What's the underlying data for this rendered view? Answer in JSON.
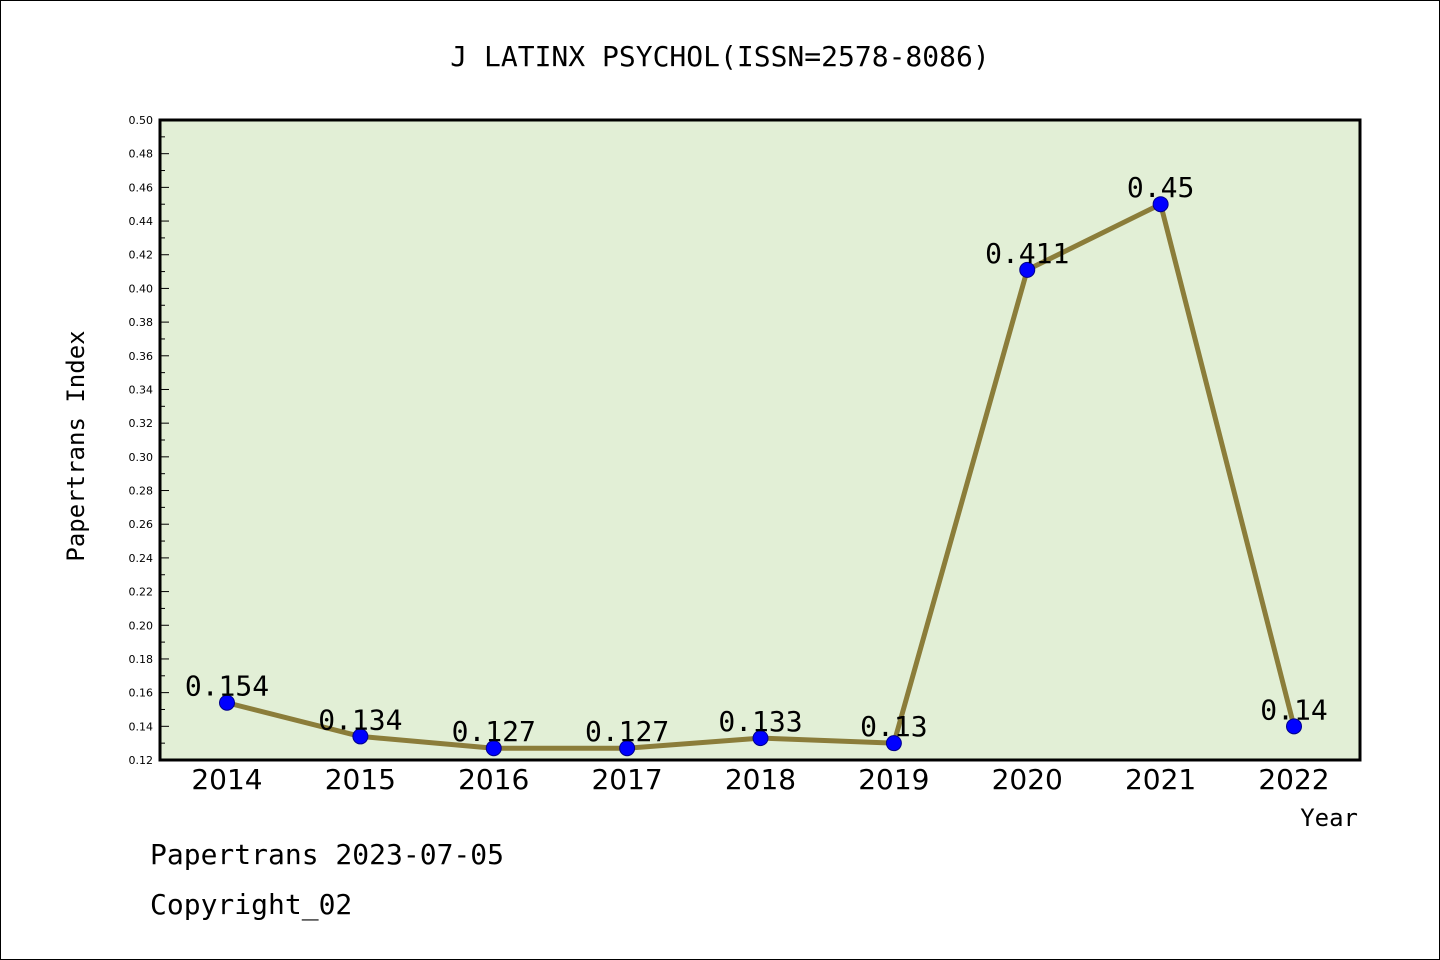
{
  "chart_data": {
    "type": "line",
    "title": "J LATINX PSYCHOL(ISSN=2578-8086)",
    "xlabel": "Year",
    "ylabel": "Papertrans Index",
    "categories": [
      "2014",
      "2015",
      "2016",
      "2017",
      "2018",
      "2019",
      "2020",
      "2021",
      "2022"
    ],
    "values": [
      0.154,
      0.134,
      0.127,
      0.127,
      0.133,
      0.13,
      0.411,
      0.45,
      0.14
    ],
    "value_labels": [
      "0.154",
      "0.134",
      "0.127",
      "0.127",
      "0.133",
      "0.13",
      "0.411",
      "0.45",
      "0.14"
    ],
    "ylim": [
      0.12,
      0.5
    ],
    "yticks": [
      "0.12",
      "0.14",
      "0.16",
      "0.18",
      "0.20",
      "0.22",
      "0.24",
      "0.26",
      "0.28",
      "0.30",
      "0.32",
      "0.34",
      "0.36",
      "0.38",
      "0.40",
      "0.42",
      "0.44",
      "0.46",
      "0.48",
      "0.50"
    ],
    "grid": false,
    "legend": "none",
    "colors": {
      "plot_background": "#e2efd6",
      "line": "#8b7d3a",
      "marker": "#0000ff"
    }
  },
  "footer": {
    "line1": "Papertrans 2023-07-05",
    "line2": "Copyright_02"
  }
}
